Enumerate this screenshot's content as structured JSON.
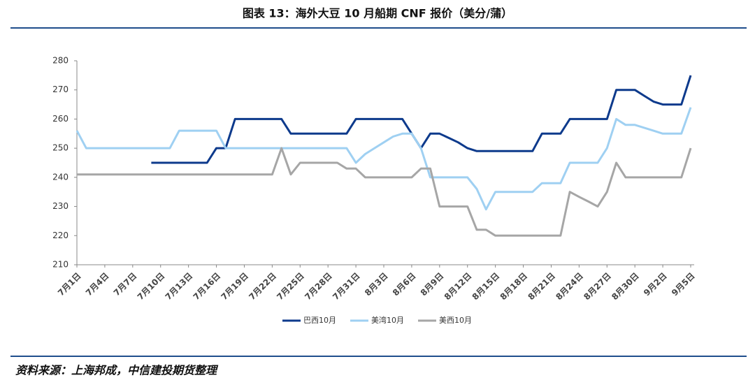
{
  "chart_data": {
    "type": "line",
    "title": "图表 13：海外大豆 10 月船期 CNF 报价（美分/蒲）",
    "source": "资料来源：上海邦成，中信建投期货整理",
    "categories": [
      "7月1日",
      null,
      null,
      "7月4日",
      null,
      null,
      "7月7日",
      null,
      null,
      "7月10日",
      null,
      null,
      "7月13日",
      null,
      null,
      "7月16日",
      null,
      null,
      "7月19日",
      null,
      null,
      "7月22日",
      null,
      null,
      "7月25日",
      null,
      null,
      "7月28日",
      null,
      null,
      "7月31日",
      null,
      null,
      "8月3日",
      null,
      null,
      "8月6日",
      null,
      null,
      "8月9日",
      null,
      null,
      "8月12日",
      null,
      null,
      "8月15日",
      null,
      null,
      "8月18日",
      null,
      null,
      "8月21日",
      null,
      null,
      "8月24日",
      null,
      null,
      "8月27日",
      null,
      null,
      "8月30日",
      null,
      null,
      "9月2日",
      null,
      null,
      "9月5日"
    ],
    "series": [
      {
        "name": "巴西10月",
        "color": "#0d3a8c",
        "values": [
          null,
          null,
          null,
          null,
          null,
          null,
          null,
          null,
          245,
          245,
          245,
          245,
          245,
          245,
          245,
          250,
          250,
          260,
          260,
          260,
          260,
          260,
          260,
          255,
          255,
          255,
          255,
          255,
          255,
          255,
          260,
          260,
          260,
          260,
          260,
          260,
          255,
          250,
          255,
          255,
          253.5,
          252,
          250,
          249,
          249,
          249,
          249,
          249,
          249,
          249,
          255,
          255,
          255,
          260,
          260,
          260,
          260,
          260,
          270,
          270,
          270,
          268,
          266,
          265,
          265,
          265,
          275
        ]
      },
      {
        "name": "美湾10月",
        "color": "#9fd0f2",
        "values": [
          256,
          250,
          250,
          250,
          250,
          250,
          250,
          250,
          250,
          250,
          250,
          256,
          256,
          256,
          256,
          256,
          250,
          250,
          250,
          250,
          250,
          250,
          250,
          250,
          250,
          250,
          250,
          250,
          250,
          250,
          245,
          248,
          250,
          252,
          254,
          255,
          255,
          250,
          240,
          240,
          240,
          240,
          240,
          236,
          229,
          235,
          235,
          235,
          235,
          235,
          238,
          238,
          238,
          245,
          245,
          245,
          245,
          250,
          260,
          258,
          258,
          257,
          256,
          255,
          255,
          255,
          264
        ]
      },
      {
        "name": "美西10月",
        "color": "#a6a6a6",
        "values": [
          241,
          241,
          241,
          241,
          241,
          241,
          241,
          241,
          241,
          241,
          241,
          241,
          241,
          241,
          241,
          241,
          241,
          241,
          241,
          241,
          241,
          241,
          250,
          241,
          245,
          245,
          245,
          245,
          245,
          243,
          243,
          240,
          240,
          240,
          240,
          240,
          240,
          243,
          243,
          230,
          230,
          230,
          230,
          222,
          222,
          220,
          220,
          220,
          220,
          220,
          220,
          220,
          220,
          235,
          233.3,
          231.7,
          230,
          235,
          245,
          240,
          240,
          240,
          240,
          240,
          240,
          240,
          250
        ]
      }
    ],
    "ylim": [
      210,
      280
    ],
    "yticks": [
      210,
      220,
      230,
      240,
      250,
      260,
      270,
      280
    ],
    "grid": false,
    "legend": "bottom"
  }
}
